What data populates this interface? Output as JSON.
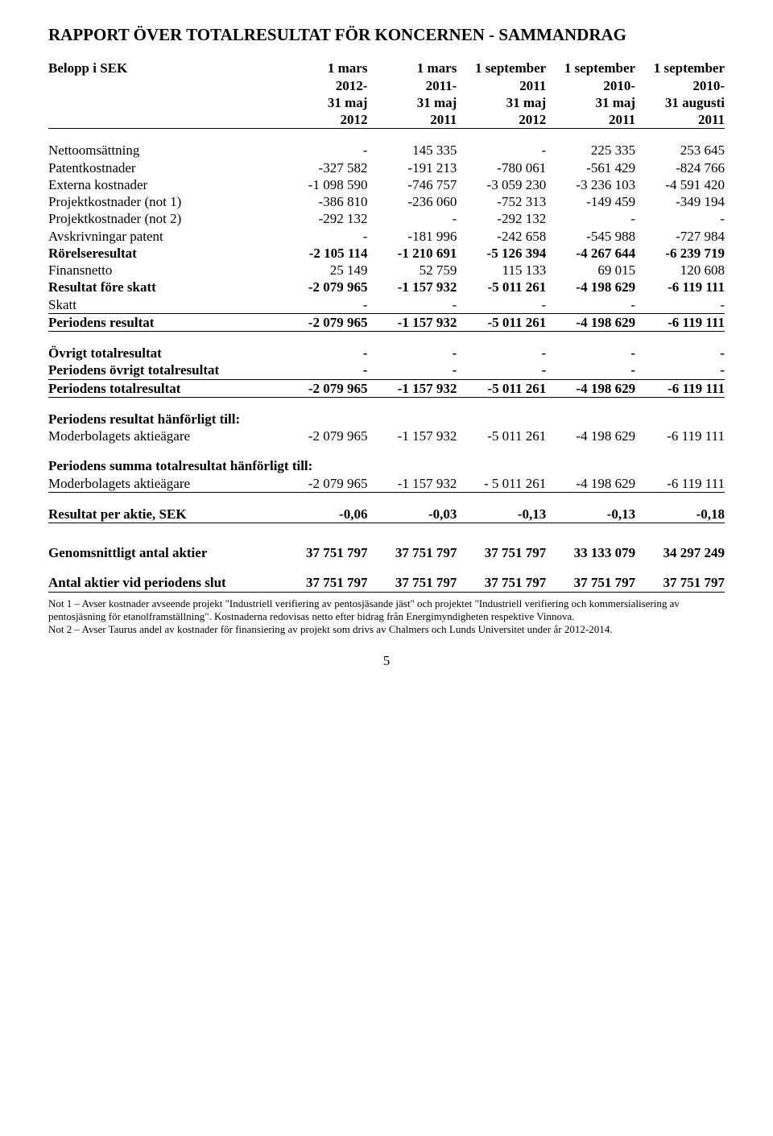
{
  "title": "RAPPORT ÖVER TOTALRESULTAT FÖR KONCERNEN - SAMMANDRAG",
  "header": {
    "row_label": "Belopp i SEK",
    "cols": [
      [
        "1 mars",
        "2012-",
        "31 maj",
        "2012"
      ],
      [
        "1 mars",
        "2011-",
        "31 maj",
        "2011"
      ],
      [
        "1 september",
        "2011",
        "31 maj",
        "2012"
      ],
      [
        "1 september",
        "2010-",
        "31 maj",
        "2011"
      ],
      [
        "1 september",
        "2010-",
        "31 augusti",
        "2011"
      ]
    ]
  },
  "rows1": [
    {
      "label": "Nettoomsättning",
      "v": [
        "-",
        "145 335",
        "-",
        "225 335",
        "253 645"
      ]
    },
    {
      "label": "Patentkostnader",
      "v": [
        "-327 582",
        "-191 213",
        "-780 061",
        "-561 429",
        "-824 766"
      ]
    },
    {
      "label": "Externa kostnader",
      "v": [
        "-1 098 590",
        "-746 757",
        "-3 059 230",
        "-3 236 103",
        "-4 591 420"
      ]
    },
    {
      "label": "Projektkostnader (not 1)",
      "v": [
        "-386 810",
        "-236 060",
        "-752 313",
        "-149 459",
        "-349 194"
      ]
    },
    {
      "label": "Projektkostnader (not 2)",
      "v": [
        "-292 132",
        "-",
        "-292 132",
        "-",
        "-"
      ]
    },
    {
      "label": "Avskrivningar patent",
      "v": [
        "-",
        "-181 996",
        "-242 658",
        "-545 988",
        "-727 984"
      ]
    },
    {
      "label": "Rörelseresultat",
      "v": [
        "-2 105 114",
        "-1 210 691",
        "-5 126 394",
        "-4 267 644",
        "-6 239 719"
      ],
      "bold": true
    },
    {
      "label": "Finansnetto",
      "v": [
        "25 149",
        "52 759",
        "115 133",
        "69 015",
        "120 608"
      ]
    },
    {
      "label": "Resultat före skatt",
      "v": [
        "-2 079 965",
        "-1 157 932",
        "-5 011 261",
        "-4 198 629",
        "-6 119 111"
      ],
      "bold": true
    },
    {
      "label": "Skatt",
      "v": [
        "-",
        "-",
        "-",
        "-",
        "-"
      ]
    }
  ],
  "periodens_resultat": {
    "label": "Periodens resultat",
    "v": [
      "-2 079 965",
      "-1 157 932",
      "-5 011 261",
      "-4 198 629",
      "-6 119 111"
    ]
  },
  "ovrigt_block": [
    {
      "label": "Övrigt totalresultat",
      "v": [
        "-",
        "-",
        "-",
        "-",
        "-"
      ],
      "bold": true
    },
    {
      "label": "Periodens övrigt totalresultat",
      "v": [
        "-",
        "-",
        "-",
        "-",
        "-"
      ],
      "bold": true
    }
  ],
  "periodens_totalresultat": {
    "label": "Periodens totalresultat",
    "v": [
      "-2 079 965",
      "-1 157 932",
      "-5 011 261",
      "-4 198 629",
      "-6 119 111"
    ]
  },
  "hanforligt1": {
    "head": "Periodens resultat hänförligt till:",
    "row": {
      "label": "Moderbolagets aktieägare",
      "v": [
        "-2 079 965",
        "-1 157 932",
        "-5 011 261",
        "-4 198 629",
        "-6 119 111"
      ]
    }
  },
  "hanforligt2": {
    "head": "Periodens summa totalresultat hänförligt till:",
    "row": {
      "label": "Moderbolagets aktieägare",
      "v": [
        "-2 079 965",
        "-1 157 932",
        "- 5 011 261",
        "-4 198 629",
        "-6 119 111"
      ]
    }
  },
  "resultat_per_aktie": {
    "label": "Resultat per aktie, SEK",
    "v": [
      "-0,06",
      "-0,03",
      "-0,13",
      "-0,13",
      "-0,18"
    ]
  },
  "genomsnitt": {
    "label": "Genomsnittligt antal aktier",
    "v": [
      "37 751 797",
      "37 751 797",
      "37 751 797",
      "33 133 079",
      "34 297 249"
    ]
  },
  "antal_slut": {
    "label": "Antal aktier vid periodens slut",
    "v": [
      "37 751 797",
      "37 751 797",
      "37 751 797",
      "37 751 797",
      "37 751 797"
    ]
  },
  "notes": {
    "n1": "Not 1 – Avser kostnader avseende projekt \"Industriell verifiering av pentosjäsande jäst\" och projektet \"Industriell verifiering och kommersialisering av pentosjäsning för etanolframställning\". Kostnaderna redovisas netto efter bidrag från Energimyndigheten respektive Vinnova.",
    "n2": "Not 2 – Avser Taurus andel av kostnader för finansiering av projekt som drivs av Chalmers och Lunds Universitet under år 2012-2014."
  },
  "page_number": "5",
  "style": {
    "font_family": "Times New Roman",
    "title_fontsize_pt": 16,
    "body_fontsize_pt": 13,
    "notes_fontsize_pt": 10,
    "text_color": "#000000",
    "background_color": "#ffffff",
    "sep_color": "#000000",
    "col_label_width_pct": 34,
    "col_num_width_pct": 13.2
  }
}
